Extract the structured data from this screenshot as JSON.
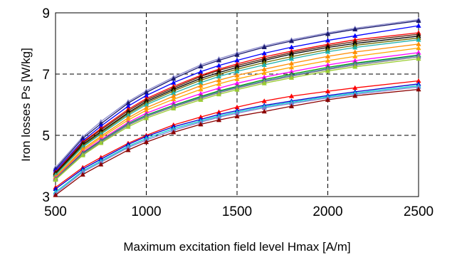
{
  "chart_data": {
    "type": "line",
    "xlabel": "Maximum excitation field level Hmax [A/m]",
    "ylabel": "Iron losses Ps [W/kg]",
    "xlim": [
      500,
      2500
    ],
    "ylim": [
      3,
      9
    ],
    "x_ticks": [
      "500",
      "1000",
      "1500",
      "2000",
      "2500"
    ],
    "y_ticks": [
      "3",
      "5",
      "7",
      "9"
    ],
    "grid": "dashed",
    "legend": "none",
    "x": [
      500,
      650,
      750,
      900,
      1000,
      1150,
      1300,
      1400,
      1500,
      1650,
      1800,
      2000,
      2150,
      2500
    ],
    "series": [
      {
        "color": "#8a8acd",
        "marker": "triangle",
        "values": [
          3.95,
          4.95,
          5.45,
          6.1,
          6.45,
          6.9,
          7.3,
          7.5,
          7.68,
          7.92,
          8.12,
          8.35,
          8.5,
          8.78
        ]
      },
      {
        "color": "#1a1a6e",
        "marker": "triangle",
        "values": [
          3.9,
          4.9,
          5.38,
          6.05,
          6.4,
          6.85,
          7.25,
          7.45,
          7.63,
          7.88,
          8.08,
          8.31,
          8.46,
          8.74
        ]
      },
      {
        "color": "#0000ff",
        "marker": "triangle",
        "values": [
          3.85,
          4.82,
          5.3,
          5.95,
          6.3,
          6.72,
          7.08,
          7.28,
          7.45,
          7.68,
          7.88,
          8.1,
          8.25,
          8.58
        ]
      },
      {
        "color": "#ff0000",
        "marker": "triangle",
        "values": [
          3.8,
          4.78,
          5.22,
          5.85,
          6.2,
          6.6,
          6.96,
          7.16,
          7.33,
          7.56,
          7.75,
          7.97,
          8.12,
          8.35
        ]
      },
      {
        "color": "#5c1a00",
        "marker": "triangle",
        "values": [
          3.78,
          4.75,
          5.18,
          5.8,
          6.15,
          6.55,
          6.92,
          7.12,
          7.28,
          7.5,
          7.7,
          7.92,
          8.06,
          8.3
        ]
      },
      {
        "color": "#000000",
        "marker": "triangle",
        "values": [
          3.75,
          4.7,
          5.12,
          5.74,
          6.1,
          6.5,
          6.86,
          7.05,
          7.22,
          7.45,
          7.65,
          7.87,
          8.0,
          8.24
        ]
      },
      {
        "color": "#6b6b00",
        "marker": "triangle",
        "values": [
          3.72,
          4.66,
          5.08,
          5.7,
          6.05,
          6.45,
          6.8,
          6.99,
          7.16,
          7.38,
          7.57,
          7.8,
          7.94,
          8.18
        ]
      },
      {
        "color": "#20b2aa",
        "marker": "triangle",
        "values": [
          3.7,
          4.62,
          5.04,
          5.65,
          6.0,
          6.38,
          6.72,
          6.92,
          7.09,
          7.3,
          7.5,
          7.73,
          7.87,
          8.12
        ]
      },
      {
        "color": "#ff8c00",
        "marker": "triangle",
        "values": [
          3.65,
          4.55,
          4.97,
          5.57,
          5.9,
          6.28,
          6.62,
          6.8,
          6.96,
          7.16,
          7.35,
          7.58,
          7.72,
          7.98
        ]
      },
      {
        "color": "#ffa500",
        "marker": "triangle",
        "values": [
          3.62,
          4.5,
          4.92,
          5.5,
          5.82,
          6.18,
          6.5,
          6.68,
          6.84,
          7.04,
          7.22,
          7.44,
          7.58,
          7.85
        ]
      },
      {
        "color": "#ff00ff",
        "marker": "triangle",
        "values": [
          3.6,
          4.45,
          4.86,
          5.42,
          5.72,
          6.06,
          6.36,
          6.54,
          6.7,
          6.9,
          7.08,
          7.3,
          7.44,
          7.7
        ]
      },
      {
        "color": "#00a000",
        "marker": "triangle",
        "values": [
          3.58,
          4.42,
          4.82,
          5.38,
          5.66,
          5.98,
          6.27,
          6.45,
          6.6,
          6.82,
          7.0,
          7.22,
          7.36,
          7.62
        ]
      },
      {
        "color": "#4682b4",
        "marker": "triangle",
        "values": [
          3.57,
          4.4,
          4.8,
          5.36,
          5.64,
          5.96,
          6.24,
          6.42,
          6.57,
          6.78,
          6.96,
          7.18,
          7.33,
          7.6
        ]
      },
      {
        "color": "#808080",
        "marker": "triangle",
        "values": [
          3.56,
          4.38,
          4.78,
          5.33,
          5.61,
          5.93,
          6.21,
          6.39,
          6.54,
          6.75,
          6.93,
          7.15,
          7.29,
          7.56
        ]
      },
      {
        "color": "#9acd32",
        "marker": "triangle",
        "values": [
          3.55,
          4.35,
          4.75,
          5.28,
          5.56,
          5.88,
          6.16,
          6.34,
          6.49,
          6.7,
          6.88,
          7.1,
          7.24,
          7.5
        ]
      },
      {
        "color": "#ff0000",
        "marker": "triangle",
        "values": [
          3.3,
          3.95,
          4.28,
          4.74,
          5.0,
          5.34,
          5.6,
          5.76,
          5.92,
          6.12,
          6.28,
          6.44,
          6.55,
          6.78
        ]
      },
      {
        "color": "#0000cd",
        "marker": "triangle",
        "values": [
          3.25,
          3.9,
          4.22,
          4.7,
          4.96,
          5.28,
          5.52,
          5.68,
          5.81,
          5.98,
          6.12,
          6.3,
          6.42,
          6.68
        ]
      },
      {
        "color": "#00ced1",
        "marker": "triangle",
        "values": [
          3.15,
          3.84,
          4.16,
          4.64,
          4.9,
          5.22,
          5.47,
          5.63,
          5.76,
          5.94,
          6.08,
          6.26,
          6.38,
          6.62
        ]
      },
      {
        "color": "#7b7bcf",
        "marker": "triangle",
        "values": [
          3.1,
          3.8,
          4.12,
          4.6,
          4.85,
          5.17,
          5.43,
          5.59,
          5.72,
          5.9,
          6.04,
          6.22,
          6.34,
          6.58
        ]
      },
      {
        "color": "#8b0000",
        "marker": "triangle",
        "values": [
          3.05,
          3.72,
          4.05,
          4.52,
          4.78,
          5.1,
          5.36,
          5.5,
          5.62,
          5.78,
          5.95,
          6.16,
          6.29,
          6.5
        ]
      }
    ]
  }
}
